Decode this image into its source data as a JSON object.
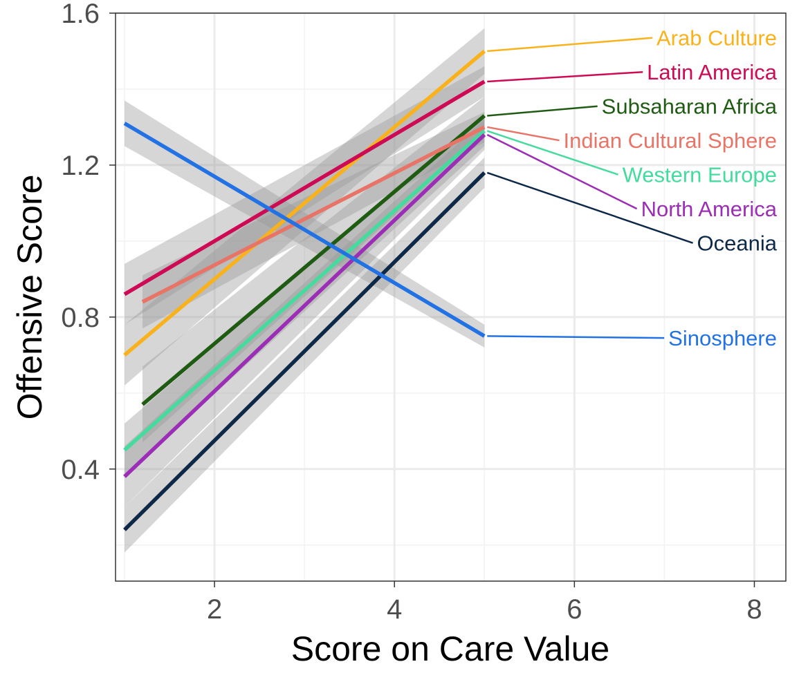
{
  "chart_data": {
    "type": "line",
    "title": "",
    "xlabel": "Score on Care Value",
    "ylabel": "Offensive Score",
    "xlim": [
      0.9,
      8.35
    ],
    "ylim": [
      0.105,
      1.6
    ],
    "xticks": [
      2,
      4,
      6,
      8
    ],
    "xtick_labels": [
      "2",
      "4",
      "6",
      "8"
    ],
    "yticks": [
      0.4,
      0.8,
      1.2,
      1.6
    ],
    "ytick_labels": [
      "0.4",
      "0.8",
      "1.2",
      "1.6"
    ],
    "x_minor": [
      1,
      3,
      5,
      7
    ],
    "y_minor": [
      0.2,
      0.6,
      1.0,
      1.4
    ],
    "grid": true,
    "legend": "direct labels at right",
    "series": [
      {
        "name": "Arab Culture",
        "color": "#F9B21B",
        "x": [
          1,
          5
        ],
        "y": [
          0.7,
          1.5
        ],
        "ci_low": [
          0.62,
          1.44
        ],
        "ci_high": [
          0.78,
          1.56
        ],
        "label_y": 1.535
      },
      {
        "name": "Latin America",
        "color": "#CE0A55",
        "x": [
          1,
          5
        ],
        "y": [
          0.86,
          1.42
        ],
        "ci_low": [
          0.78,
          1.38
        ],
        "ci_high": [
          0.94,
          1.46
        ],
        "label_y": 1.445
      },
      {
        "name": "Subsaharan Africa",
        "color": "#1F5B12",
        "x": [
          1.2,
          5
        ],
        "y": [
          0.57,
          1.33
        ],
        "ci_low": [
          0.47,
          1.28
        ],
        "ci_high": [
          0.67,
          1.38
        ],
        "label_y": 1.355
      },
      {
        "name": "Indian Cultural Sphere",
        "color": "#E87467",
        "x": [
          1.2,
          5
        ],
        "y": [
          0.84,
          1.3
        ],
        "ci_low": [
          0.77,
          1.26
        ],
        "ci_high": [
          0.91,
          1.34
        ],
        "label_y": 1.265
      },
      {
        "name": "Western Europe",
        "color": "#45DB9E",
        "x": [
          1,
          5
        ],
        "y": [
          0.45,
          1.29
        ],
        "ci_low": [
          0.38,
          1.25
        ],
        "ci_high": [
          0.52,
          1.33
        ],
        "label_y": 1.175
      },
      {
        "name": "North America",
        "color": "#9B2DB6",
        "x": [
          1,
          5
        ],
        "y": [
          0.38,
          1.28
        ],
        "ci_low": [
          0.3,
          1.24
        ],
        "ci_high": [
          0.46,
          1.32
        ],
        "label_y": 1.085
      },
      {
        "name": "Oceania",
        "color": "#0E2947",
        "x": [
          1,
          5
        ],
        "y": [
          0.24,
          1.18
        ],
        "ci_low": [
          0.18,
          1.14
        ],
        "ci_high": [
          0.3,
          1.22
        ],
        "label_y": 0.995
      },
      {
        "name": "Sinosphere",
        "color": "#2272E3",
        "x": [
          1,
          5
        ],
        "y": [
          1.31,
          0.75
        ],
        "ci_low": [
          1.25,
          0.72
        ],
        "ci_high": [
          1.37,
          0.78
        ],
        "label_y": 0.745
      }
    ]
  }
}
